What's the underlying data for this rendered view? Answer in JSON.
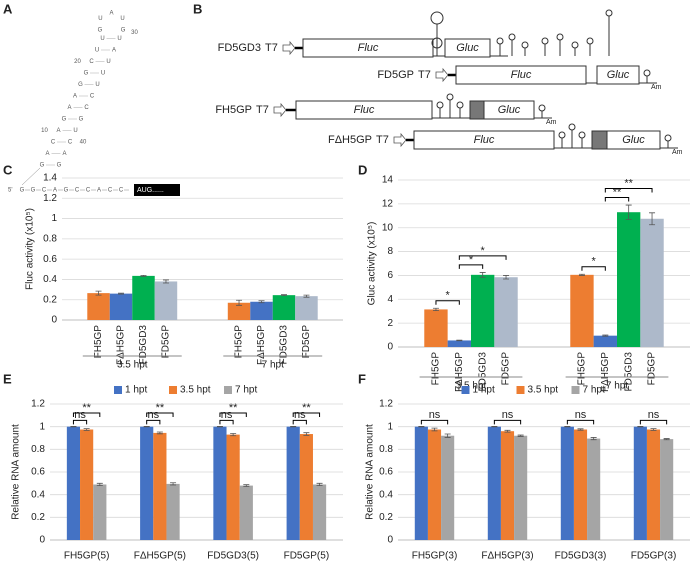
{
  "panels": {
    "A": {
      "label": "A",
      "five_prime": "5'",
      "bottom": [
        "G",
        "G",
        "C",
        "A",
        "G",
        "C",
        "C",
        "A",
        "C",
        "C"
      ],
      "start": "AUG......",
      "left_strand": [
        "G",
        "A",
        "C",
        "A",
        "G",
        "A",
        "A",
        "G",
        "G",
        "C",
        "U",
        "U"
      ],
      "right_strand": [
        "U",
        "A",
        "U",
        "U",
        "U",
        "C",
        "C",
        "G",
        "U",
        "C",
        "A",
        "G"
      ],
      "loop": [
        "G",
        "U",
        "A",
        "U",
        "G"
      ],
      "numbers": [
        "10",
        "20",
        "30",
        "40"
      ]
    },
    "B": {
      "label": "B",
      "constructs": [
        {
          "name": "FD5GD3",
          "promoter": "T7",
          "gene1": "Fluc",
          "gene2": "Gluc"
        },
        {
          "name": "FD5GP",
          "promoter": "T7",
          "gene1": "Fluc",
          "gene2": "Gluc",
          "tail": "Am"
        },
        {
          "name": "FH5GP",
          "promoter": "T7",
          "gene1": "Fluc",
          "gene2": "Gluc",
          "tail": "Am"
        },
        {
          "name": "FΔH5GP",
          "promoter": "T7",
          "gene1": "Fluc",
          "gene2": "Gluc",
          "tail": "Am"
        }
      ]
    }
  },
  "chart_data": [
    {
      "type": "bar",
      "panel_label": "C",
      "ylabel": "Fluc activity (x10⁵)",
      "ylim": [
        0,
        1.4
      ],
      "yticks": [
        0,
        0.2,
        0.4,
        0.6,
        0.8,
        1,
        1.2,
        1.4
      ],
      "grid": true,
      "groups": [
        "3.5 hpt",
        "7 hpt"
      ],
      "series": [
        {
          "name": "FH5GP",
          "color": "#ed7d31",
          "values": [
            0.265,
            0.17
          ],
          "errors": [
            0.02,
            0.025
          ]
        },
        {
          "name": "FΔH5GP",
          "color": "#4472c4",
          "values": [
            0.26,
            0.18
          ],
          "errors": [
            0.005,
            0.01
          ]
        },
        {
          "name": "FD5GD3",
          "color": "#00b050",
          "values": [
            0.435,
            0.245
          ],
          "errors": [
            0.005,
            0.005
          ]
        },
        {
          "name": "FD5GP",
          "color": "#adb9ca",
          "values": [
            0.38,
            0.235
          ],
          "errors": [
            0.015,
            0.01
          ]
        }
      ]
    },
    {
      "type": "bar",
      "panel_label": "D",
      "ylabel": "Gluc activity (x10⁵)",
      "ylim": [
        0,
        14
      ],
      "yticks": [
        0,
        2,
        4,
        6,
        8,
        10,
        12,
        14
      ],
      "grid": true,
      "groups": [
        "3.5 hpt",
        "7 hpt"
      ],
      "series": [
        {
          "name": "FH5GP",
          "color": "#ed7d31",
          "values": [
            3.15,
            6.05
          ],
          "errors": [
            0.1,
            0.05
          ]
        },
        {
          "name": "FΔH5GP",
          "color": "#4472c4",
          "values": [
            0.55,
            0.95
          ],
          "errors": [
            0.02,
            0.05
          ]
        },
        {
          "name": "FD5GD3",
          "color": "#00b050",
          "values": [
            6.05,
            11.3
          ],
          "errors": [
            0.2,
            0.6
          ]
        },
        {
          "name": "FD5GP",
          "color": "#adb9ca",
          "values": [
            5.85,
            10.75
          ],
          "errors": [
            0.15,
            0.5
          ]
        }
      ],
      "annotations": [
        {
          "at": "3.5 hpt",
          "from": "FH5GP",
          "to": "FΔH5GP",
          "label": "*"
        },
        {
          "at": "3.5 hpt",
          "from": "FΔH5GP",
          "to": "FD5GD3",
          "label": "*"
        },
        {
          "at": "3.5 hpt",
          "from": "FΔH5GP",
          "to": "FD5GP",
          "label": "*"
        },
        {
          "at": "7 hpt",
          "from": "FH5GP",
          "to": "FΔH5GP",
          "label": "*"
        },
        {
          "at": "7 hpt",
          "from": "FΔH5GP",
          "to": "FD5GD3",
          "label": "**"
        },
        {
          "at": "7 hpt",
          "from": "FΔH5GP",
          "to": "FD5GP",
          "label": "**"
        }
      ]
    },
    {
      "type": "bar",
      "panel_label": "E",
      "ylabel": "Relative RNA amount",
      "ylim": [
        0,
        1.2
      ],
      "yticks": [
        0,
        0.2,
        0.4,
        0.6,
        0.8,
        1,
        1.2
      ],
      "grid": true,
      "categories": [
        "FH5GP(5)",
        "FΔH5GP(5)",
        "FD5GD3(5)",
        "FD5GP(5)"
      ],
      "series": [
        {
          "name": "1 hpt",
          "color": "#4472c4",
          "values": [
            1,
            1,
            1,
            1
          ],
          "errors": [
            0.002,
            0.002,
            0.002,
            0.002
          ]
        },
        {
          "name": "3.5 hpt",
          "color": "#ed7d31",
          "values": [
            0.975,
            0.945,
            0.93,
            0.935
          ],
          "errors": [
            0.008,
            0.008,
            0.01,
            0.012
          ]
        },
        {
          "name": "7 hpt",
          "color": "#a5a5a5",
          "values": [
            0.49,
            0.495,
            0.48,
            0.49
          ],
          "errors": [
            0.01,
            0.01,
            0.008,
            0.01
          ]
        }
      ],
      "annotations": [
        {
          "at": "FH5GP(5)",
          "from": "1 hpt",
          "to": "3.5 hpt",
          "label": "ns"
        },
        {
          "at": "FH5GP(5)",
          "from": "1 hpt",
          "to": "7 hpt",
          "label": "**"
        },
        {
          "at": "FΔH5GP(5)",
          "from": "1 hpt",
          "to": "3.5 hpt",
          "label": "ns"
        },
        {
          "at": "FΔH5GP(5)",
          "from": "1 hpt",
          "to": "7 hpt",
          "label": "**"
        },
        {
          "at": "FD5GD3(5)",
          "from": "1 hpt",
          "to": "3.5 hpt",
          "label": "ns"
        },
        {
          "at": "FD5GD3(5)",
          "from": "1 hpt",
          "to": "7 hpt",
          "label": "**"
        },
        {
          "at": "FD5GP(5)",
          "from": "1 hpt",
          "to": "3.5 hpt",
          "label": "ns"
        },
        {
          "at": "FD5GP(5)",
          "from": "1 hpt",
          "to": "7 hpt",
          "label": "**"
        }
      ]
    },
    {
      "type": "bar",
      "panel_label": "F",
      "ylabel": "Relative RNA amount",
      "ylim": [
        0,
        1.2
      ],
      "yticks": [
        0,
        0.2,
        0.4,
        0.6,
        0.8,
        1,
        1.2
      ],
      "grid": true,
      "categories": [
        "FH5GP(3)",
        "FΔH5GP(3)",
        "FD5GD3(3)",
        "FD5GP(3)"
      ],
      "series": [
        {
          "name": "1 hpt",
          "color": "#4472c4",
          "values": [
            1,
            1,
            1,
            1
          ],
          "errors": [
            0.002,
            0.002,
            0.002,
            0.002
          ]
        },
        {
          "name": "3.5 hpt",
          "color": "#ed7d31",
          "values": [
            0.975,
            0.96,
            0.975,
            0.975
          ],
          "errors": [
            0.012,
            0.008,
            0.006,
            0.008
          ]
        },
        {
          "name": "7 hpt",
          "color": "#a5a5a5",
          "values": [
            0.92,
            0.92,
            0.895,
            0.89
          ],
          "errors": [
            0.015,
            0.006,
            0.01,
            0.005
          ]
        }
      ],
      "annotations": [
        {
          "at": "FH5GP(3)",
          "from": "1 hpt",
          "to": "7 hpt",
          "label": "ns"
        },
        {
          "at": "FΔH5GP(3)",
          "from": "1 hpt",
          "to": "7 hpt",
          "label": "ns"
        },
        {
          "at": "FD5GD3(3)",
          "from": "1 hpt",
          "to": "7 hpt",
          "label": "ns"
        },
        {
          "at": "FD5GP(3)",
          "from": "1 hpt",
          "to": "7 hpt",
          "label": "ns"
        }
      ]
    }
  ]
}
